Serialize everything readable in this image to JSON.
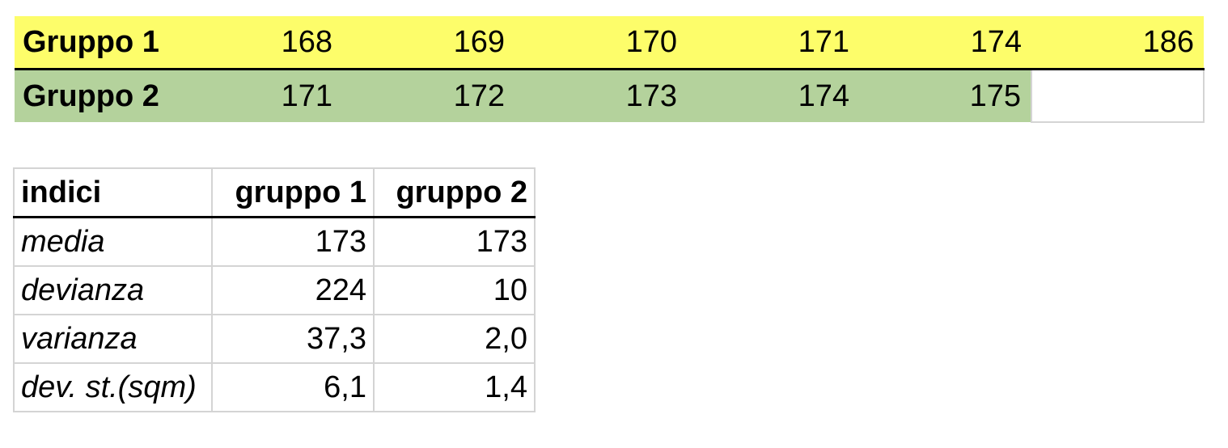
{
  "groups": {
    "rows": [
      {
        "label": "Gruppo 1",
        "values": [
          "168",
          "169",
          "170",
          "171",
          "174",
          "186"
        ],
        "color": "#fdfd6a"
      },
      {
        "label": "Gruppo 2",
        "values": [
          "171",
          "172",
          "173",
          "174",
          "175",
          ""
        ],
        "color": "#b4d29c"
      }
    ]
  },
  "stats": {
    "headers": [
      "indici",
      "gruppo 1",
      "gruppo 2"
    ],
    "rows": [
      {
        "label": "media",
        "g1": "173",
        "g2": "173"
      },
      {
        "label": "devianza",
        "g1": "224",
        "g2": "10"
      },
      {
        "label": "varianza",
        "g1": "37,3",
        "g2": "2,0"
      },
      {
        "label": "dev. st.(sqm)",
        "g1": "6,1",
        "g2": "1,4"
      }
    ]
  }
}
